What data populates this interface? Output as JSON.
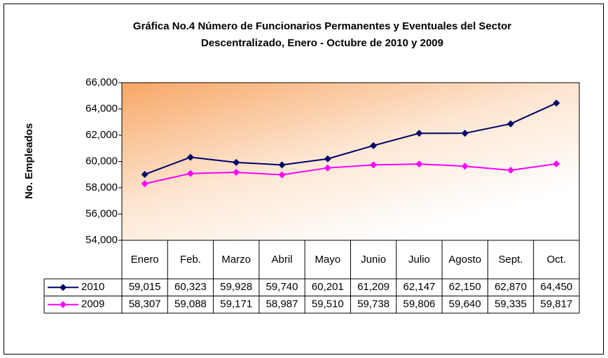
{
  "chart_data": {
    "type": "line",
    "title": "Gráfica No.4 Número de Funcionarios Permanentes y Eventuales del Sector",
    "subtitle": "Descentralizado, Enero - Octubre de 2010 y 2009",
    "y_label": "No. Empleados",
    "categories": [
      "Enero",
      "Feb.",
      "Marzo",
      "Abril",
      "Mayo",
      "Junio",
      "Julio",
      "Agosto",
      "Sept.",
      "Oct."
    ],
    "series": [
      {
        "name": "2010",
        "color": "#000066",
        "values": [
          59015,
          60323,
          59928,
          59740,
          60201,
          61209,
          62147,
          62150,
          62870,
          64450
        ],
        "value_labels": [
          "59,015",
          "60,323",
          "59,928",
          "59,740",
          "60,201",
          "61,209",
          "62,147",
          "62,150",
          "62,870",
          "64,450"
        ]
      },
      {
        "name": "2009",
        "color": "#ff00ff",
        "values": [
          58307,
          59088,
          59171,
          58987,
          59510,
          59738,
          59806,
          59640,
          59335,
          59817
        ],
        "value_labels": [
          "58,307",
          "59,088",
          "59,171",
          "58,987",
          "59,510",
          "59,738",
          "59,806",
          "59,640",
          "59,335",
          "59,817"
        ]
      }
    ],
    "ylim": [
      54000,
      66000
    ],
    "yticks": [
      {
        "value": 54000,
        "label": "54,000"
      },
      {
        "value": 56000,
        "label": "56,000"
      },
      {
        "value": 58000,
        "label": "58,000"
      },
      {
        "value": 60000,
        "label": "60,000"
      },
      {
        "value": 62000,
        "label": "62,000"
      },
      {
        "value": 64000,
        "label": "64,000"
      },
      {
        "value": 66000,
        "label": "66,000"
      }
    ]
  }
}
